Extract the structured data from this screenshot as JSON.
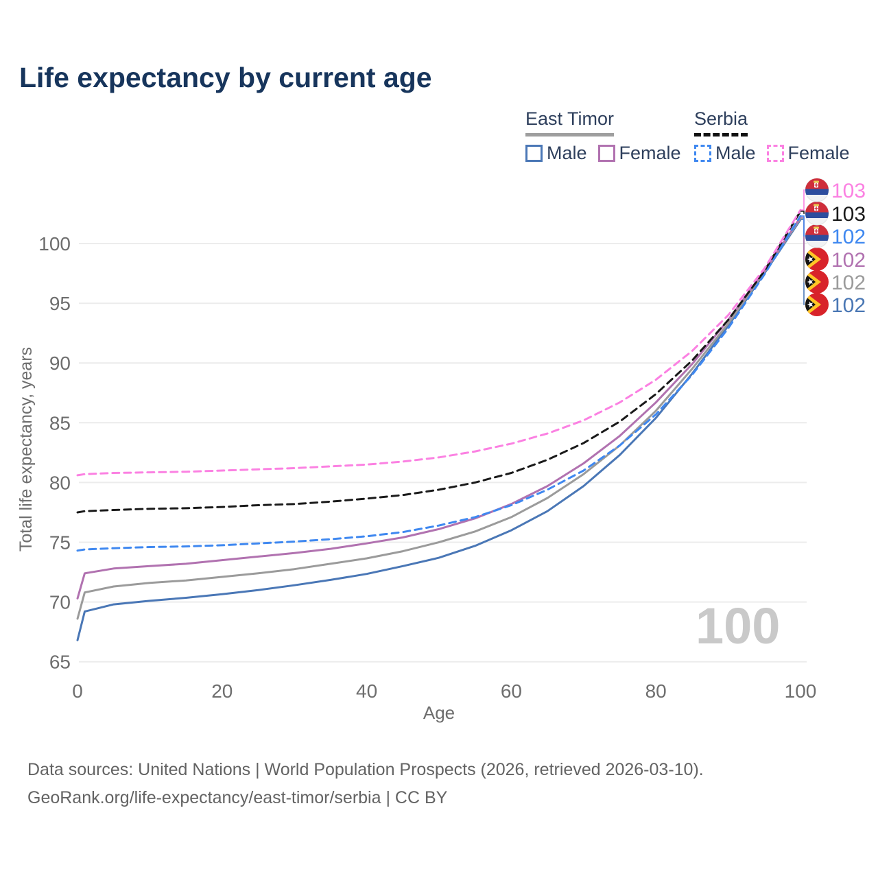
{
  "header": {
    "title": "Life expectancy by current age"
  },
  "legend": {
    "groups": [
      {
        "country": "East Timor",
        "line_style": "solid",
        "underline_color": "#9e9e9e",
        "items": [
          {
            "label": "Male",
            "color": "#4a77b6"
          },
          {
            "label": "Female",
            "color": "#b172b0"
          }
        ]
      },
      {
        "country": "Serbia",
        "line_style": "dashed",
        "underline_color": "#111111",
        "items": [
          {
            "label": "Male",
            "color": "#3f88f0"
          },
          {
            "label": "Female",
            "color": "#fb81e2"
          }
        ]
      }
    ]
  },
  "chart_data": {
    "type": "line",
    "title": "Life expectancy by current age",
    "xlabel": "Age",
    "ylabel": "Total life expectancy, years",
    "xlim": [
      0,
      100
    ],
    "ylim": [
      65,
      103.5
    ],
    "xticks": [
      0,
      20,
      40,
      60,
      80,
      100
    ],
    "yticks": [
      65,
      70,
      75,
      80,
      85,
      90,
      95,
      100
    ],
    "grid": "horizontal-only",
    "age_counter": "100",
    "x": [
      0,
      1,
      5,
      10,
      15,
      20,
      25,
      30,
      35,
      40,
      45,
      50,
      55,
      60,
      65,
      70,
      75,
      80,
      85,
      90,
      95,
      100
    ],
    "series": [
      {
        "name": "East Timor Male",
        "country": "East Timor",
        "sex": "male",
        "flag": "east-timor",
        "color": "#4a77b6",
        "dashed": false,
        "end_label": "102",
        "label_color": "#4a77b4",
        "label_row": 5,
        "values": [
          66.8,
          69.2,
          69.8,
          70.1,
          70.35,
          70.65,
          71.0,
          71.4,
          71.85,
          72.35,
          73.0,
          73.7,
          74.7,
          76.0,
          77.6,
          79.7,
          82.3,
          85.4,
          89.1,
          93.1,
          97.5,
          102.0
        ]
      },
      {
        "name": "East Timor Total",
        "country": "East Timor",
        "sex": "total",
        "flag": "east-timor",
        "color": "#9b9b9b",
        "dashed": false,
        "end_label": "102",
        "label_color": "#9b9b9b",
        "label_row": 4,
        "values": [
          68.6,
          70.8,
          71.3,
          71.6,
          71.8,
          72.1,
          72.4,
          72.75,
          73.2,
          73.65,
          74.25,
          75.0,
          75.9,
          77.1,
          78.7,
          80.7,
          83.1,
          86.0,
          89.5,
          93.3,
          97.6,
          102.1
        ]
      },
      {
        "name": "East Timor Female",
        "country": "East Timor",
        "sex": "female",
        "flag": "east-timor",
        "color": "#b172b0",
        "dashed": false,
        "end_label": "102",
        "label_color": "#b172b0",
        "label_row": 3,
        "values": [
          70.3,
          72.4,
          72.8,
          73.0,
          73.2,
          73.5,
          73.8,
          74.1,
          74.45,
          74.9,
          75.4,
          76.1,
          77.0,
          78.2,
          79.7,
          81.6,
          83.9,
          86.7,
          89.9,
          93.6,
          97.7,
          102.2
        ]
      },
      {
        "name": "Serbia Male",
        "country": "Serbia",
        "sex": "male",
        "flag": "serbia",
        "color": "#3f88f0",
        "dashed": true,
        "end_label": "102",
        "label_color": "#3f88f0",
        "label_row": 2,
        "values": [
          74.3,
          74.4,
          74.5,
          74.6,
          74.65,
          74.75,
          74.9,
          75.05,
          75.25,
          75.5,
          75.85,
          76.4,
          77.1,
          78.1,
          79.4,
          81.0,
          83.1,
          85.7,
          89.0,
          92.9,
          97.4,
          102.3
        ]
      },
      {
        "name": "Serbia Total",
        "country": "Serbia",
        "sex": "total",
        "flag": "serbia",
        "color": "#1a1a1a",
        "dashed": true,
        "end_label": "103",
        "label_color": "#1a1a1a",
        "label_row": 1,
        "values": [
          77.5,
          77.6,
          77.7,
          77.8,
          77.85,
          77.95,
          78.1,
          78.2,
          78.4,
          78.65,
          78.95,
          79.4,
          80.0,
          80.8,
          81.9,
          83.3,
          85.1,
          87.4,
          90.2,
          93.6,
          97.7,
          102.7
        ]
      },
      {
        "name": "Serbia Female",
        "country": "Serbia",
        "sex": "female",
        "flag": "serbia",
        "color": "#fb81e2",
        "dashed": true,
        "end_label": "103",
        "label_color": "#fb81e2",
        "label_row": 0,
        "values": [
          80.6,
          80.7,
          80.8,
          80.85,
          80.9,
          81.0,
          81.1,
          81.2,
          81.35,
          81.5,
          81.75,
          82.1,
          82.6,
          83.25,
          84.1,
          85.2,
          86.7,
          88.6,
          91.0,
          94.0,
          97.9,
          102.8
        ]
      }
    ]
  },
  "footer": {
    "line1": "Data sources: United Nations | World Population Prospects (2026, retrieved 2026-03-10).",
    "line2": "GeoRank.org/life-expectancy/east-timor/serbia | CC BY"
  }
}
